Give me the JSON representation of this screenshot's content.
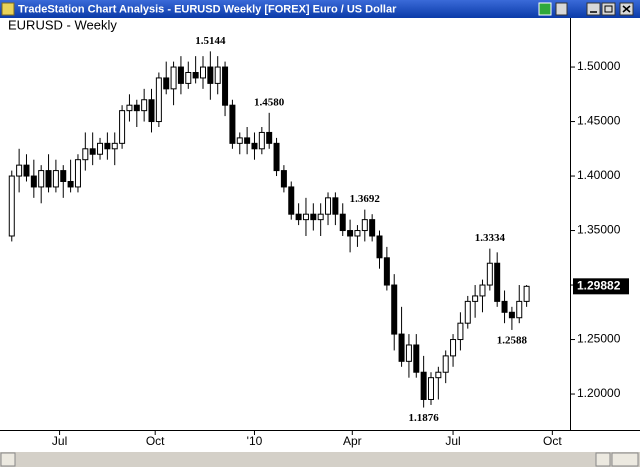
{
  "window_title": "TradeStation Chart Analysis - EURUSD Weekly [FOREX] Euro / US Dollar",
  "chart_data": {
    "type": "candlestick",
    "title": "EURUSD - Weekly",
    "x": [
      0,
      1,
      2,
      3,
      4,
      5,
      6,
      7,
      8,
      9,
      10,
      11,
      12,
      13,
      14,
      15,
      16,
      17,
      18,
      19,
      20,
      21,
      22,
      23,
      24,
      25,
      26,
      27,
      28,
      29,
      30,
      31,
      32,
      33,
      34,
      35,
      36,
      37,
      38,
      39,
      40,
      41,
      42,
      43,
      44,
      45,
      46,
      47,
      48,
      49,
      50,
      51,
      52,
      53,
      54,
      55,
      56,
      57,
      58,
      59,
      60,
      61,
      62,
      63,
      64,
      65,
      66,
      67,
      68,
      69,
      70
    ],
    "series": [
      {
        "name": "EURUSD",
        "up_color": "#ffffff",
        "down_color": "#000000",
        "open": [
          1.345,
          1.4,
          1.41,
          1.4,
          1.39,
          1.405,
          1.39,
          1.405,
          1.395,
          1.39,
          1.415,
          1.425,
          1.42,
          1.43,
          1.425,
          1.43,
          1.46,
          1.465,
          1.46,
          1.47,
          1.45,
          1.49,
          1.48,
          1.5,
          1.485,
          1.495,
          1.49,
          1.5,
          1.485,
          1.5,
          1.465,
          1.43,
          1.435,
          1.43,
          1.425,
          1.44,
          1.43,
          1.405,
          1.39,
          1.365,
          1.36,
          1.365,
          1.36,
          1.365,
          1.38,
          1.365,
          1.35,
          1.345,
          1.35,
          1.36,
          1.345,
          1.325,
          1.3,
          1.255,
          1.23,
          1.245,
          1.22,
          1.195,
          1.215,
          1.22,
          1.235,
          1.25,
          1.265,
          1.285,
          1.29,
          1.3,
          1.32,
          1.285,
          1.275,
          1.27,
          1.285
        ],
        "high": [
          1.405,
          1.425,
          1.42,
          1.415,
          1.41,
          1.42,
          1.415,
          1.41,
          1.415,
          1.42,
          1.44,
          1.44,
          1.435,
          1.44,
          1.44,
          1.465,
          1.475,
          1.47,
          1.48,
          1.48,
          1.495,
          1.505,
          1.505,
          1.51,
          1.505,
          1.51,
          1.51,
          1.5144,
          1.51,
          1.505,
          1.47,
          1.44,
          1.445,
          1.44,
          1.445,
          1.458,
          1.435,
          1.41,
          1.395,
          1.375,
          1.38,
          1.375,
          1.375,
          1.385,
          1.385,
          1.375,
          1.36,
          1.355,
          1.3692,
          1.365,
          1.35,
          1.335,
          1.31,
          1.28,
          1.255,
          1.255,
          1.235,
          1.22,
          1.225,
          1.24,
          1.255,
          1.275,
          1.29,
          1.3,
          1.305,
          1.3334,
          1.33,
          1.295,
          1.28,
          1.3,
          1.3
        ],
        "low": [
          1.34,
          1.385,
          1.395,
          1.38,
          1.375,
          1.385,
          1.385,
          1.38,
          1.385,
          1.385,
          1.405,
          1.41,
          1.415,
          1.415,
          1.41,
          1.425,
          1.45,
          1.445,
          1.45,
          1.44,
          1.445,
          1.475,
          1.465,
          1.475,
          1.48,
          1.485,
          1.48,
          1.47,
          1.475,
          1.455,
          1.425,
          1.42,
          1.42,
          1.415,
          1.42,
          1.425,
          1.4,
          1.385,
          1.36,
          1.355,
          1.345,
          1.35,
          1.345,
          1.355,
          1.355,
          1.345,
          1.33,
          1.335,
          1.34,
          1.34,
          1.315,
          1.295,
          1.24,
          1.225,
          1.215,
          1.215,
          1.1876,
          1.19,
          1.195,
          1.21,
          1.225,
          1.24,
          1.26,
          1.27,
          1.275,
          1.295,
          1.28,
          1.265,
          1.2588,
          1.265,
          1.28
        ],
        "close": [
          1.4,
          1.41,
          1.4,
          1.39,
          1.405,
          1.39,
          1.405,
          1.395,
          1.39,
          1.415,
          1.425,
          1.42,
          1.43,
          1.425,
          1.43,
          1.46,
          1.465,
          1.46,
          1.47,
          1.45,
          1.49,
          1.48,
          1.5,
          1.485,
          1.495,
          1.49,
          1.5,
          1.485,
          1.5,
          1.465,
          1.43,
          1.435,
          1.43,
          1.425,
          1.44,
          1.43,
          1.405,
          1.39,
          1.365,
          1.36,
          1.365,
          1.36,
          1.365,
          1.38,
          1.365,
          1.35,
          1.345,
          1.35,
          1.36,
          1.345,
          1.325,
          1.3,
          1.255,
          1.23,
          1.245,
          1.22,
          1.195,
          1.215,
          1.22,
          1.235,
          1.25,
          1.265,
          1.285,
          1.29,
          1.3,
          1.32,
          1.285,
          1.275,
          1.27,
          1.285,
          1.29882
        ]
      }
    ],
    "annotations": [
      {
        "x": 27,
        "y": 1.5144,
        "label": "1.5144",
        "position": "above"
      },
      {
        "x": 35,
        "y": 1.458,
        "label": "1.4580",
        "position": "above"
      },
      {
        "x": 48,
        "y": 1.3692,
        "label": "1.3692",
        "position": "above"
      },
      {
        "x": 65,
        "y": 1.3334,
        "label": "1.3334",
        "position": "above"
      },
      {
        "x": 68,
        "y": 1.2588,
        "label": "1.2588",
        "position": "below"
      },
      {
        "x": 56,
        "y": 1.1876,
        "label": "1.1876",
        "position": "below"
      }
    ],
    "xlim": [
      -1.6,
      75.9
    ],
    "xticks": [
      {
        "value": 6.5,
        "label": "Jul"
      },
      {
        "value": 19.5,
        "label": "Oct"
      },
      {
        "value": 33,
        "label": "'10"
      },
      {
        "value": 46.3,
        "label": "Apr"
      },
      {
        "value": 60,
        "label": "Jul"
      },
      {
        "value": 73.5,
        "label": "Oct"
      }
    ],
    "ylim": [
      1.167,
      1.545
    ],
    "yticks": [
      {
        "value": 1.2,
        "label": "1.20000"
      },
      {
        "value": 1.25,
        "label": "1.25000"
      },
      {
        "value": 1.3,
        "label": "1.30000"
      },
      {
        "value": 1.35,
        "label": "1.35000"
      },
      {
        "value": 1.4,
        "label": "1.40000"
      },
      {
        "value": 1.45,
        "label": "1.45000"
      },
      {
        "value": 1.5,
        "label": "1.50000"
      }
    ],
    "y_axis_side": "right",
    "grid": false
  }
}
